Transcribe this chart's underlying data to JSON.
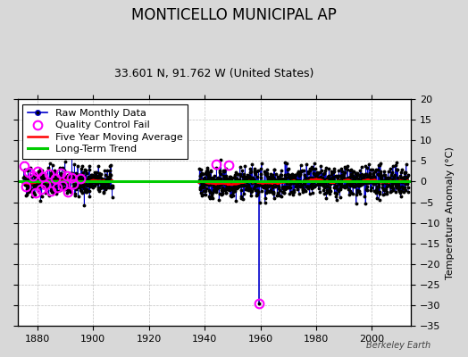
{
  "title": "MONTICELLO MUNICIPAL AP",
  "subtitle": "33.601 N, 91.762 W (United States)",
  "ylabel": "Temperature Anomaly (°C)",
  "watermark": "Berkeley Earth",
  "xlim": [
    1873,
    2014
  ],
  "ylim": [
    -35,
    20
  ],
  "yticks": [
    -35,
    -30,
    -25,
    -20,
    -15,
    -10,
    -5,
    0,
    5,
    10,
    15,
    20
  ],
  "xticks": [
    1880,
    1900,
    1920,
    1940,
    1960,
    1980,
    2000
  ],
  "bg_color": "#d8d8d8",
  "plot_bg_color": "#ffffff",
  "grid_color": "#c0c0c0",
  "raw_line_color": "#0000cc",
  "raw_marker_color": "#000000",
  "qc_fail_color": "#ff00ff",
  "moving_avg_color": "#ff0000",
  "trend_color": "#00cc00",
  "legend_fontsize": 8,
  "title_fontsize": 12,
  "subtitle_fontsize": 9,
  "seed": 42,
  "early_data_start": 1875,
  "early_period_end": 1907,
  "late_data_start": 1938,
  "late_data_end": 2013,
  "outlier_year": 1959.5,
  "outlier_value": -29.5,
  "qc_fail_years_early": [
    1875.2,
    1876.0,
    1877.0,
    1878.5,
    1879.3,
    1880.0,
    1881.5,
    1882.0,
    1883.0,
    1884.2,
    1885.0,
    1886.5,
    1887.0,
    1888.3,
    1889.0,
    1890.5,
    1891.0,
    1892.2,
    1893.0,
    1895.5
  ],
  "qc_fail_values_early": [
    3.8,
    -1.2,
    2.2,
    1.5,
    -2.8,
    2.5,
    -1.8,
    1.2,
    -0.8,
    1.8,
    -2.2,
    0.8,
    -1.5,
    2.0,
    -1.0,
    1.5,
    -2.5,
    1.0,
    -0.5,
    0.8
  ],
  "qc_fail_years_late": [
    1944.2,
    1948.5,
    1959.5
  ],
  "qc_fail_values_late": [
    4.2,
    4.0,
    -29.5
  ]
}
